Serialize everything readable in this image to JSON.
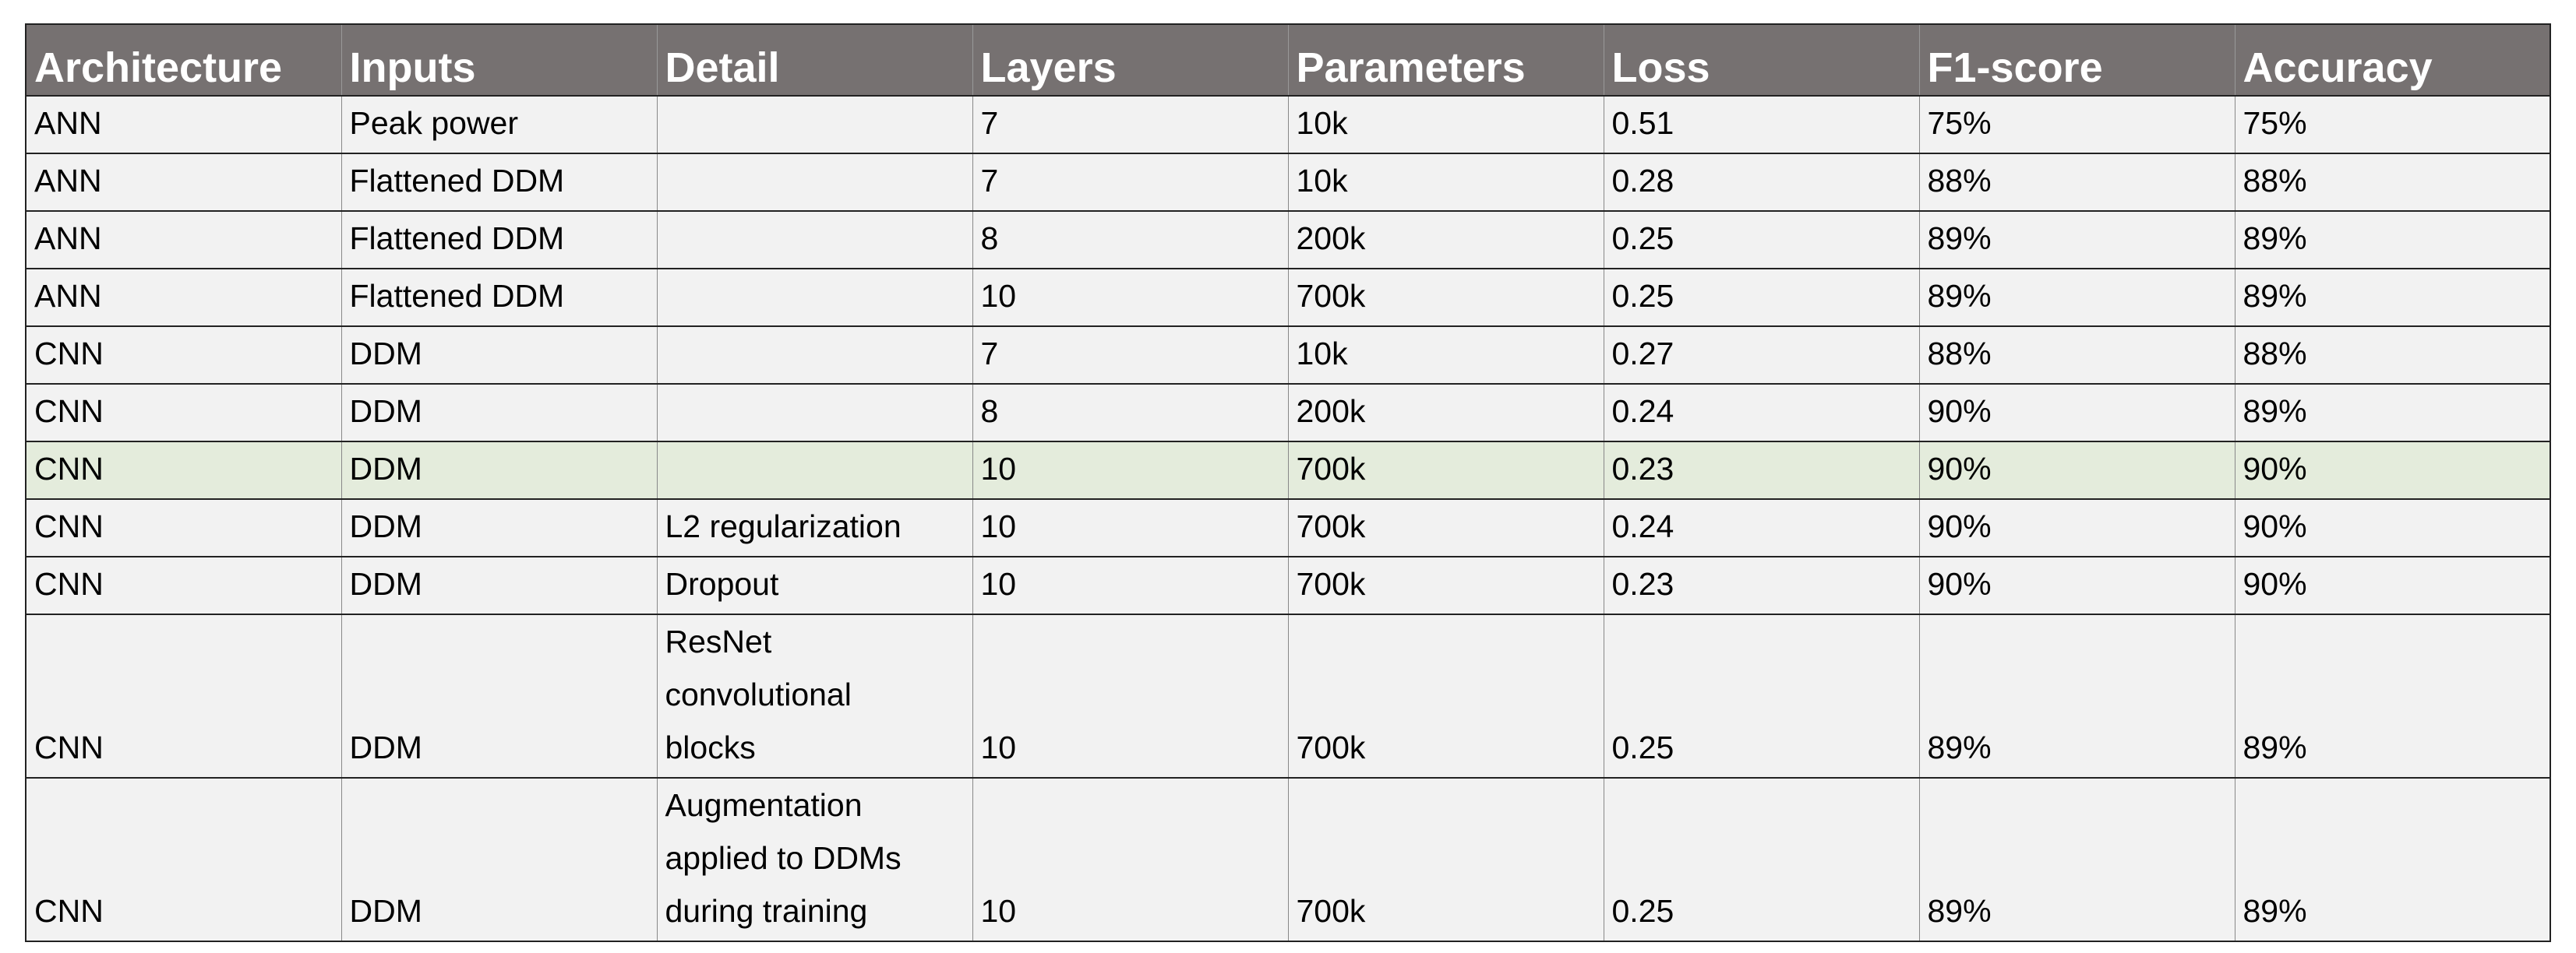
{
  "table": {
    "headers": [
      "Architecture",
      "Inputs",
      "Detail",
      "Layers",
      "Parameters",
      "Loss",
      "F1-score",
      "Accuracy"
    ],
    "highlighted_row": 6,
    "rows": [
      [
        "ANN",
        "Peak power",
        null,
        "7",
        "10k",
        "0.51",
        "75%",
        "75%"
      ],
      [
        "ANN",
        "Flattened DDM",
        null,
        "7",
        "10k",
        "0.28",
        "88%",
        "88%"
      ],
      [
        "ANN",
        "Flattened DDM",
        null,
        "8",
        "200k",
        "0.25",
        "89%",
        "89%"
      ],
      [
        "ANN",
        "Flattened DDM",
        null,
        "10",
        "700k",
        "0.25",
        "89%",
        "89%"
      ],
      [
        "CNN",
        "DDM",
        null,
        "7",
        "10k",
        "0.27",
        "88%",
        "88%"
      ],
      [
        "CNN",
        "DDM",
        null,
        "8",
        "200k",
        "0.24",
        "90%",
        "89%"
      ],
      [
        "CNN",
        "DDM",
        null,
        "10",
        "700k",
        "0.23",
        "90%",
        "90%"
      ],
      [
        "CNN",
        "DDM",
        "L2 regularization",
        "10",
        "700k",
        "0.24",
        "90%",
        "90%"
      ],
      [
        "CNN",
        "DDM",
        "Dropout",
        "10",
        "700k",
        "0.23",
        "90%",
        "90%"
      ],
      [
        "CNN",
        "DDM",
        "ResNet convolutional blocks",
        "10",
        "700k",
        "0.25",
        "89%",
        "89%"
      ],
      [
        "CNN",
        "DDM",
        "Augmentation applied to DDMs during training",
        "10",
        "700k",
        "0.25",
        "89%",
        "89%"
      ]
    ]
  }
}
